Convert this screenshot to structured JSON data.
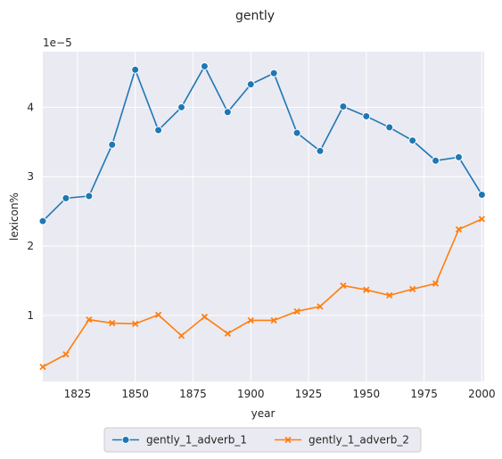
{
  "chart_data": {
    "type": "line",
    "title": "gently",
    "xlabel": "year",
    "ylabel": "lexicon%",
    "y_scale_label": "1e−5",
    "xlim": [
      1810,
      2001
    ],
    "ylim": [
      0.05,
      4.8
    ],
    "x_ticks": [
      1825,
      1850,
      1875,
      1900,
      1925,
      1950,
      1975,
      2000
    ],
    "y_ticks": [
      1,
      2,
      3,
      4
    ],
    "grid": true,
    "legend_position": "bottom-center",
    "x": [
      1810,
      1820,
      1830,
      1840,
      1850,
      1860,
      1870,
      1880,
      1890,
      1900,
      1910,
      1920,
      1930,
      1940,
      1950,
      1960,
      1970,
      1980,
      1990,
      2000
    ],
    "series": [
      {
        "name": "gently_1_adverb_1",
        "color": "#1f77b4",
        "marker": "circle",
        "values": [
          2.36,
          2.69,
          2.72,
          3.46,
          4.54,
          3.67,
          4.0,
          4.59,
          3.93,
          4.33,
          4.49,
          3.63,
          3.37,
          4.01,
          3.87,
          3.71,
          3.52,
          3.23,
          3.28,
          2.74
        ]
      },
      {
        "name": "gently_1_adverb_2",
        "color": "#ff7f0e",
        "marker": "x",
        "values": [
          0.26,
          0.44,
          0.94,
          0.89,
          0.88,
          1.01,
          0.71,
          0.98,
          0.74,
          0.93,
          0.93,
          1.06,
          1.13,
          1.43,
          1.37,
          1.29,
          1.38,
          1.46,
          2.24,
          2.39
        ]
      }
    ]
  }
}
